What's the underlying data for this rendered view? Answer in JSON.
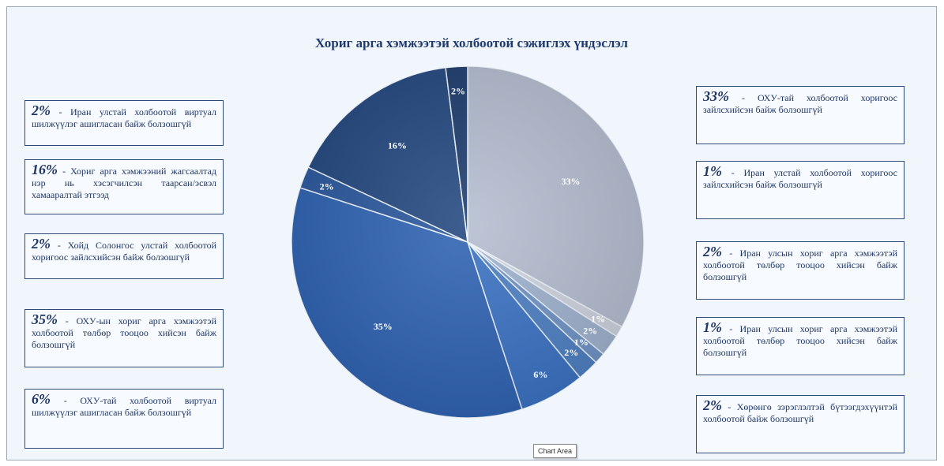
{
  "chart_data": {
    "type": "pie",
    "title": "Хориг арга хэмжээтэй холбоотой сэжиглэх үндэслэл",
    "slices": [
      {
        "value": 33,
        "label": "33%",
        "color": "#b4bdd0"
      },
      {
        "value": 1,
        "label": "1%",
        "color": "#cdd3df"
      },
      {
        "value": 2,
        "label": "2%",
        "color": "#9fb2cf"
      },
      {
        "value": 1,
        "label": "1%",
        "color": "#6f93c6"
      },
      {
        "value": 2,
        "label": "2%",
        "color": "#4d7fc3"
      },
      {
        "value": 6,
        "label": "6%",
        "color": "#3a72c4"
      },
      {
        "value": 35,
        "label": "35%",
        "color": "#2f63b3"
      },
      {
        "value": 2,
        "label": "2%",
        "color": "#2a589e"
      },
      {
        "value": 16,
        "label": "16%",
        "color": "#23487f"
      },
      {
        "value": 2,
        "label": "2%",
        "color": "#1e3d6e"
      }
    ]
  },
  "legend_left": [
    {
      "pct": "2%",
      "text": "- Иран улстай холбоотой виртуал шилжүүлэг ашигласан байж болзошгүй"
    },
    {
      "pct": "16%",
      "text": "- Хориг арга хэмжээний жагсаалтад нэр нь хэсэгчилсэн таарсан/эсвэл хамааралтай этгээд"
    },
    {
      "pct": "2%",
      "text": "- Хойд Солонгос улстай холбоотой хоригоос зайлсхийсэн байж болзошгүй"
    },
    {
      "pct": "35%",
      "text": "- ОХУ-ын хориг арга хэмжээтэй холбоотой төлбөр тооцоо хийсэн байж болзошгүй"
    },
    {
      "pct": "6%",
      "text": "- ОХУ-тай холбоотой виртуал шилжүүлэг ашигласан байж болзошгүй"
    }
  ],
  "legend_right": [
    {
      "pct": "33%",
      "text": "- ОХУ-тай холбоотой хоригоос зайлсхийсэн байж болзошгүй"
    },
    {
      "pct": "1%",
      "text": "- Иран улстай холбоотой хоригоос зайлсхийсэн байж болзошгүй"
    },
    {
      "pct": "2%",
      "text": "- Иран улсын хориг арга хэмжээтэй холбоотой төлбөр тооцоо хийсэн байж болзошгүй"
    },
    {
      "pct": "1%",
      "text": "- Иран улсын хориг арга хэмжээтэй холбоотой төлбөр тооцоо хийсэн байж болзошгүй"
    },
    {
      "pct": "2%",
      "text": "- Хөрөнгө зэрэглэлтэй бүтээгдэхүүнтэй холбоотой байж болзошгүй"
    }
  ],
  "tooltip": "Chart Area"
}
